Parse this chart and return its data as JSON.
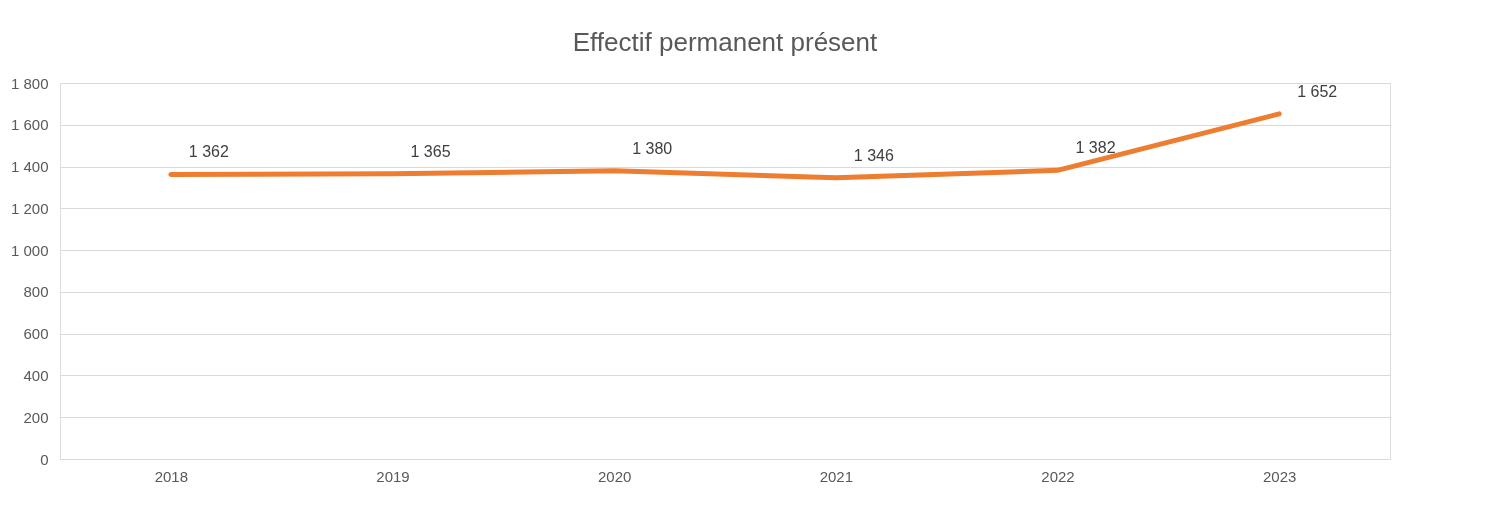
{
  "chart_data": {
    "type": "line",
    "title": "Effectif permanent  présent",
    "categories": [
      "2018",
      "2019",
      "2020",
      "2021",
      "2022",
      "2023"
    ],
    "series": [
      {
        "color": "#ed7d31",
        "values": [
          1362,
          1365,
          1380,
          1346,
          1382,
          1652
        ],
        "value_labels": [
          "1 362",
          "1 365",
          "1 380",
          "1 346",
          "1 382",
          "1 652"
        ]
      }
    ],
    "ylim": [
      0,
      1800
    ],
    "yticks": [
      0,
      200,
      400,
      600,
      800,
      {
        "value": 1000,
        "label": "1 000"
      },
      {
        "value": 1200,
        "label": "1 200"
      },
      {
        "value": 1400,
        "label": "1 400"
      },
      {
        "value": 1600,
        "label": "1 600"
      },
      {
        "value": 1800,
        "label": "1 800"
      }
    ],
    "grid": "y",
    "marker": "none",
    "line_style": "solid"
  }
}
